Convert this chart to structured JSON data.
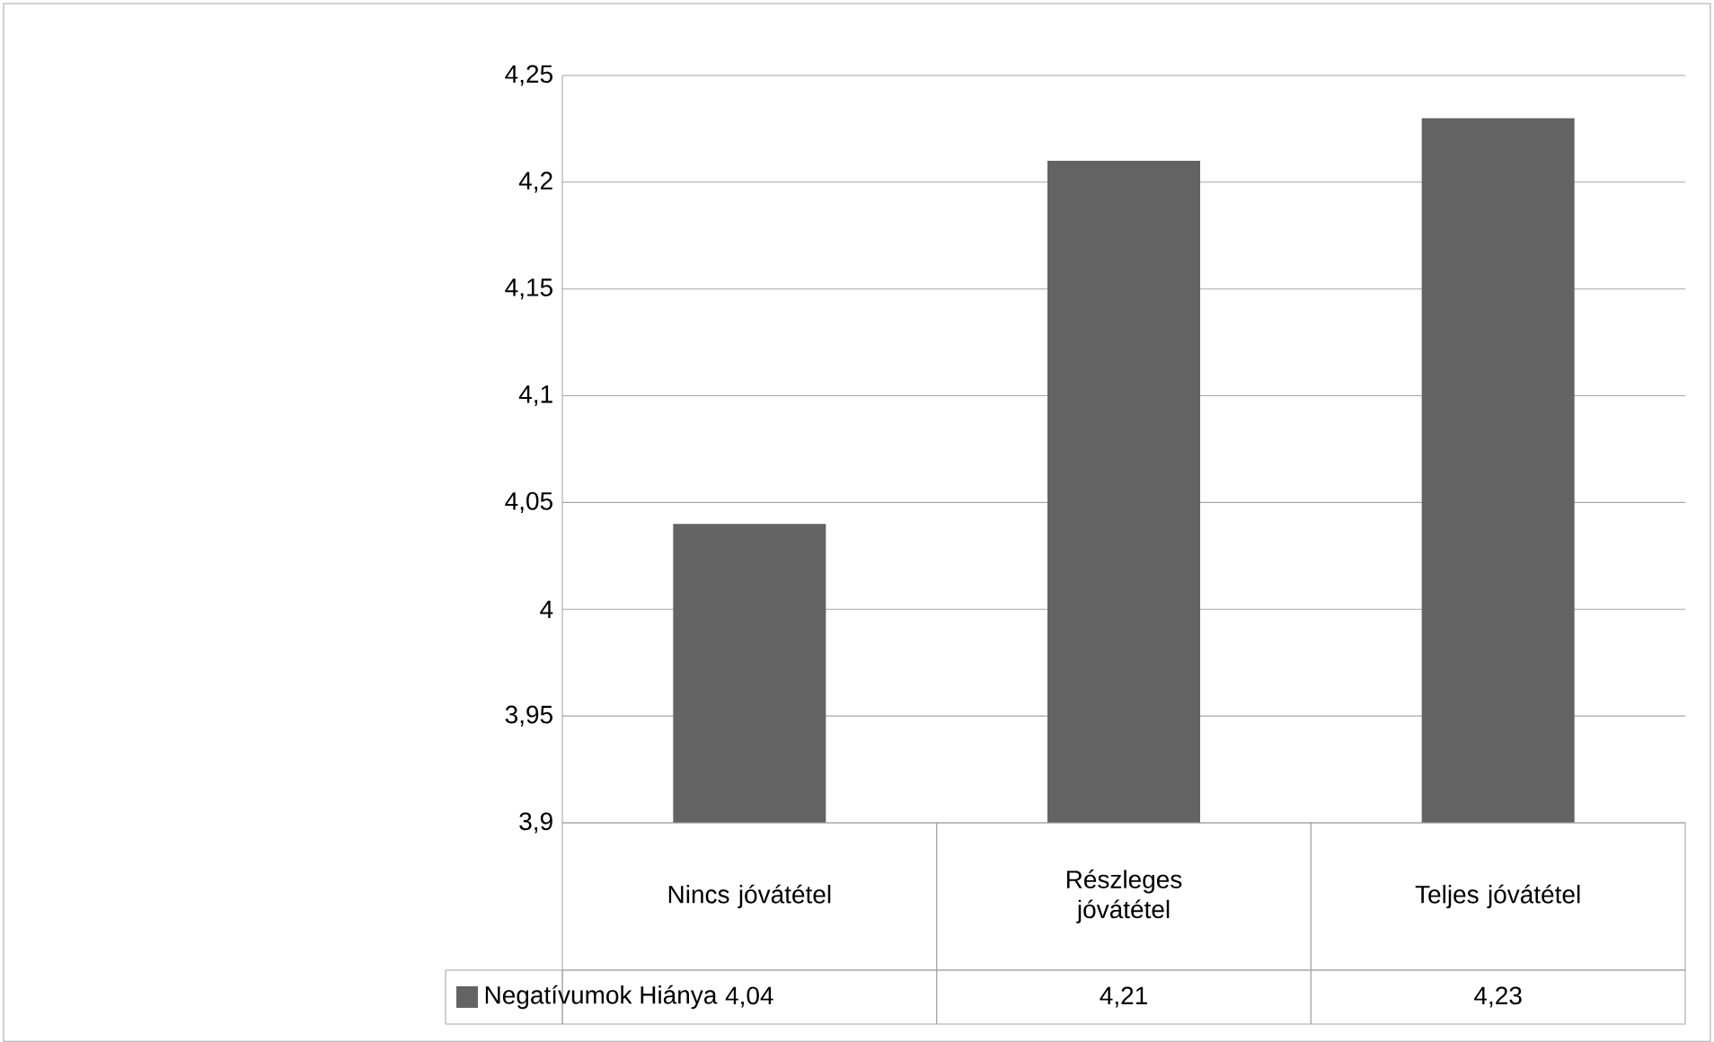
{
  "chart_data": {
    "type": "bar",
    "categories": [
      "Nincs jóvátétel",
      "Részleges jóvátétel",
      "Teljes jóvátétel"
    ],
    "series": [
      {
        "name": "Negatívumok Hiánya",
        "color": "#636363",
        "values": [
          4.04,
          4.21,
          4.23
        ],
        "value_labels": [
          "4,04",
          "4,21",
          "4,23"
        ]
      }
    ],
    "ylim": [
      3.9,
      4.25
    ],
    "yticks": [
      {
        "value": 3.9,
        "label": "3,9"
      },
      {
        "value": 3.95,
        "label": "3,95"
      },
      {
        "value": 4,
        "label": "4"
      },
      {
        "value": 4.05,
        "label": "4,05"
      },
      {
        "value": 4.1,
        "label": "4,1"
      },
      {
        "value": 4.15,
        "label": "4,15"
      },
      {
        "value": 4.2,
        "label": "4,2"
      },
      {
        "value": 4.25,
        "label": "4,25"
      }
    ],
    "grid": "y",
    "legend": "bottom"
  }
}
